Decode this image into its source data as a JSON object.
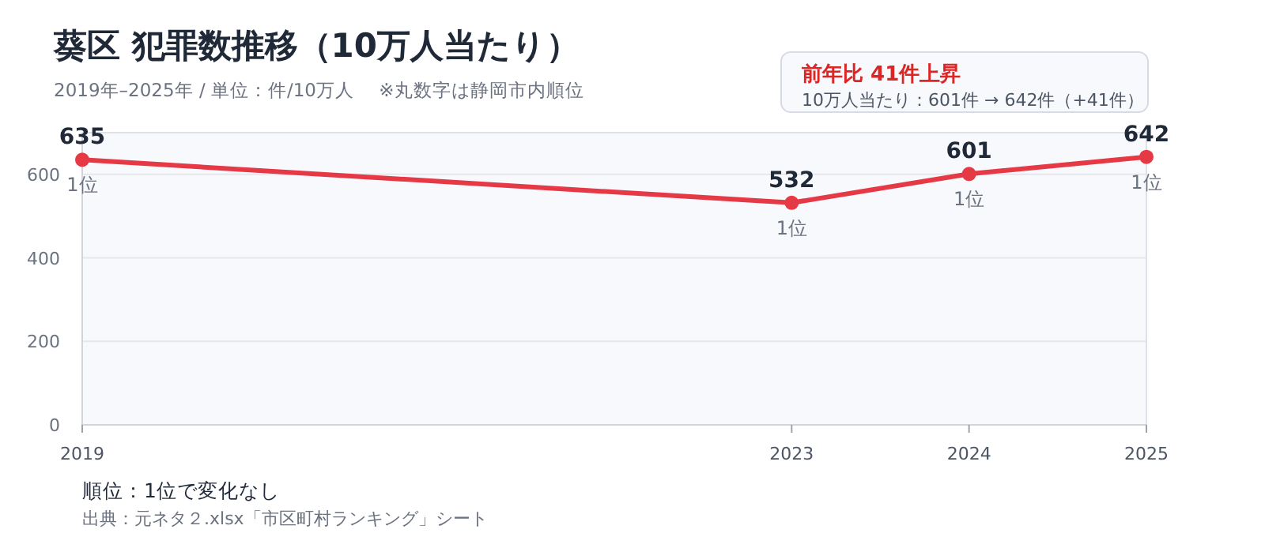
{
  "chart_data": {
    "type": "line",
    "title": "葵区  犯罪数推移（10万人当たり）",
    "subtitle": "2019年–2025年 / 単位：件/10万人　 ※丸数字は静岡市内順位",
    "x": [
      2019,
      2023,
      2024,
      2025
    ],
    "series": [
      {
        "color": "#e63946",
        "values": [
          635,
          532,
          601,
          642
        ]
      }
    ],
    "data_labels": true,
    "marker": "circle",
    "xlim": [
      2019,
      2025
    ],
    "xticks": [
      2019,
      2023,
      2024,
      2025
    ],
    "ylim": [
      0,
      700
    ],
    "yticks": [
      0,
      200,
      400,
      600
    ],
    "grid": "y",
    "annotations": [
      {
        "text": "1位",
        "x": 2019,
        "y": 635
      },
      {
        "text": "1位",
        "x": 2023,
        "y": 532
      },
      {
        "text": "1位",
        "x": 2024,
        "y": 601
      },
      {
        "text": "1位",
        "x": 2025,
        "y": 642
      },
      "前年比  41件上昇",
      "10万人当たり：601件 → 642件（+41件）",
      "順位：1位で変化なし",
      "出典：元ネタ２.xlsx「市区町村ランキング」シート"
    ]
  }
}
